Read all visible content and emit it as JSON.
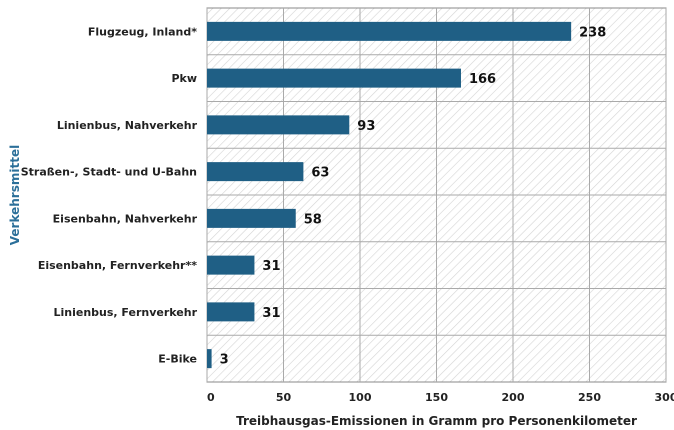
{
  "chart_data": {
    "type": "bar",
    "orientation": "horizontal",
    "title": "",
    "xlabel": "Treibhausgas-Emissionen in Gramm pro Personenkilometer",
    "ylabel": "Verkehrsmittel",
    "xlim": [
      0,
      300
    ],
    "xticks": [
      "0",
      "50",
      "100",
      "150",
      "200",
      "250",
      "300"
    ],
    "grid": true,
    "legend": "none",
    "categories": [
      "Flugzeug, Inland*",
      "Pkw",
      "Linienbus, Nahverkehr",
      "Straßen-, Stadt- und U-Bahn",
      "Eisenbahn, Nahverkehr",
      "Eisenbahn, Fernverkehr**",
      "Linienbus, Fernverkehr",
      "E-Bike"
    ],
    "values": [
      238,
      166,
      93,
      63,
      58,
      31,
      31,
      3
    ],
    "value_labels": [
      "238",
      "166",
      "93",
      "63",
      "58",
      "31",
      "31",
      "3"
    ],
    "colors": {
      "bar": "#1f5f85",
      "ylabel": "#2b6f99",
      "grid": "#aaaaaa",
      "hatch": "#d4d4d4"
    }
  }
}
